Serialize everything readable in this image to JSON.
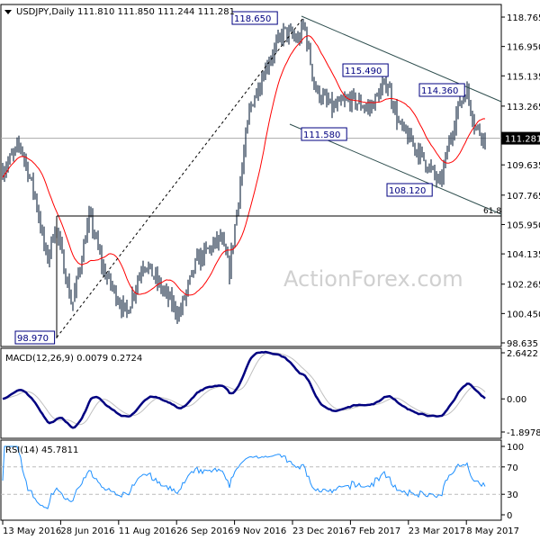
{
  "header": {
    "symbol": "USDJPY,Daily",
    "ohlc": "111.810 111.850 111.244 111.281"
  },
  "watermark": "ActionForex.com",
  "colors": {
    "bars": "#23364d",
    "moving_average": "#ff0000",
    "macd_main": "#000080",
    "macd_signal": "#c0c0c0",
    "rsi": "#1e90ff",
    "trendlines": "#2f4f4f",
    "label_border": "#000080",
    "current_price_bg": "#000000"
  },
  "chart_data": [
    {
      "type": "bar",
      "pane": "price",
      "title": "USDJPY,Daily",
      "ylim": [
        98.635,
        118.765
      ],
      "y_ticks": [
        "118.765",
        "116.950",
        "115.135",
        "113.265",
        "111.281",
        "109.635",
        "107.765",
        "105.950",
        "104.135",
        "102.265",
        "100.450",
        "98.635"
      ],
      "x_ticks": [
        "13 May 2016",
        "28 Jun 2016",
        "11 Aug 2016",
        "26 Sep 2016",
        "9 Nov 2016",
        "23 Dec 2016",
        "7 Feb 2017",
        "23 Mar 2017",
        "8 May 2017"
      ],
      "current_price": "111.281",
      "price_path": [
        {
          "date": "2016-05-13",
          "close": 109.3
        },
        {
          "date": "2016-05-27",
          "close": 110.9
        },
        {
          "date": "2016-06-08",
          "close": 107.6
        },
        {
          "date": "2016-06-17",
          "close": 103.7
        },
        {
          "date": "2016-06-24",
          "close": 105.9
        },
        {
          "date": "2016-07-07",
          "close": 100.9
        },
        {
          "date": "2016-07-21",
          "close": 106.5
        },
        {
          "date": "2016-08-01",
          "close": 103.1
        },
        {
          "date": "2016-08-19",
          "close": 100.4
        },
        {
          "date": "2016-09-02",
          "close": 103.7
        },
        {
          "date": "2016-09-16",
          "close": 102.0
        },
        {
          "date": "2016-09-30",
          "close": 100.4
        },
        {
          "date": "2016-10-14",
          "close": 103.7
        },
        {
          "date": "2016-11-02",
          "close": 105.1
        },
        {
          "date": "2016-11-09",
          "close": 103.1
        },
        {
          "date": "2016-11-16",
          "close": 107.6
        },
        {
          "date": "2016-11-25",
          "close": 113.1
        },
        {
          "date": "2016-12-09",
          "close": 115.9
        },
        {
          "date": "2016-12-22",
          "close": 117.9
        },
        {
          "date": "2017-01-03",
          "close": 117.3
        },
        {
          "date": "2017-01-07",
          "close": 118.4
        },
        {
          "date": "2017-01-16",
          "close": 114.3
        },
        {
          "date": "2017-01-30",
          "close": 113.1
        },
        {
          "date": "2017-02-13",
          "close": 113.7
        },
        {
          "date": "2017-02-28",
          "close": 113.1
        },
        {
          "date": "2017-03-14",
          "close": 114.8
        },
        {
          "date": "2017-03-24",
          "close": 112.0
        },
        {
          "date": "2017-04-04",
          "close": 110.9
        },
        {
          "date": "2017-04-18",
          "close": 109.3
        },
        {
          "date": "2017-04-25",
          "close": 108.4
        },
        {
          "date": "2017-05-02",
          "close": 110.9
        },
        {
          "date": "2017-05-09",
          "close": 113.1
        },
        {
          "date": "2017-05-16",
          "close": 114.3
        },
        {
          "date": "2017-05-23",
          "close": 112.0
        },
        {
          "date": "2017-05-31",
          "close": 111.3
        }
      ],
      "annotations": [
        {
          "text": "118.650",
          "price": 118.65
        },
        {
          "text": "115.490",
          "price": 115.49
        },
        {
          "text": "114.360",
          "price": 114.36
        },
        {
          "text": "111.580",
          "price": 111.58
        },
        {
          "text": "108.120",
          "price": 108.12
        },
        {
          "text": "98.970",
          "price": 98.97
        }
      ],
      "fibonacci": {
        "label": "61.8"
      }
    },
    {
      "type": "line",
      "pane": "macd",
      "title": "MACD(12,26,9) 0.0079 0.2724",
      "ylim": [
        -1.8978,
        2.6422
      ],
      "y_ticks": [
        "2.6422",
        "0.00",
        "-1.8978"
      ]
    },
    {
      "type": "line",
      "pane": "rsi",
      "title": "RSI(14) 45.7811",
      "ylim": [
        0,
        100
      ],
      "y_ticks": [
        "100",
        "70",
        "30",
        "0"
      ],
      "levels": [
        70,
        30
      ]
    }
  ]
}
